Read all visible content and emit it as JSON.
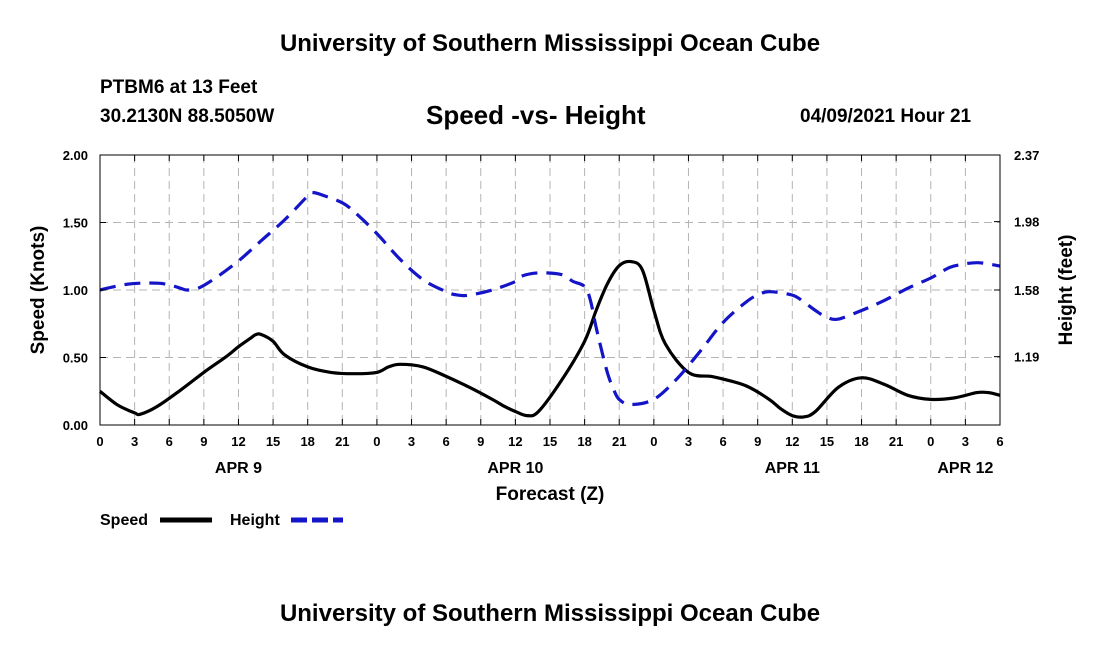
{
  "header": {
    "title_top": "University of Southern Mississippi Ocean Cube",
    "station": "PTBM6 at 13 Feet",
    "coords": "30.2130N  88.5050W",
    "chart_title": "Speed -vs- Height",
    "timestamp": "04/09/2021 Hour 21",
    "title_bottom": "University of Southern Mississippi Ocean Cube"
  },
  "colors": {
    "speed": "#000000",
    "height": "#1414c8",
    "grid": "#b4b4b4"
  },
  "chart_data": {
    "type": "line",
    "title": "Speed -vs- Height",
    "xlabel": "Forecast (Z)",
    "ylabel_left": "Speed (Knots)",
    "ylabel_right": "Height (feet)",
    "x_unit": "hours from 00Z APR 9",
    "xlim": [
      0,
      78
    ],
    "ylim_left": [
      0,
      2.0
    ],
    "ylim_right": [
      0.79,
      2.37
    ],
    "x_ticks": [
      0,
      3,
      6,
      9,
      12,
      15,
      18,
      21,
      24,
      27,
      30,
      33,
      36,
      39,
      42,
      45,
      48,
      51,
      54,
      57,
      60,
      63,
      66,
      69,
      72,
      75,
      78
    ],
    "x_tick_labels": [
      "0",
      "3",
      "6",
      "9",
      "12",
      "15",
      "18",
      "21",
      "0",
      "3",
      "6",
      "9",
      "12",
      "15",
      "18",
      "21",
      "0",
      "3",
      "6",
      "9",
      "12",
      "15",
      "18",
      "21",
      "0",
      "3",
      "6"
    ],
    "y_left_ticks": [
      "0.00",
      "0.50",
      "1.00",
      "1.50",
      "2.00"
    ],
    "y_left_tick_values": [
      0,
      0.5,
      1.0,
      1.5,
      2.0
    ],
    "y_right_ticks": [
      "1.19",
      "1.58",
      "1.98",
      "2.37"
    ],
    "y_right_tick_values": [
      1.19,
      1.58,
      1.98,
      2.37
    ],
    "date_labels": [
      {
        "label": "APR 9",
        "x": 12
      },
      {
        "label": "APR 10",
        "x": 36
      },
      {
        "label": "APR 11",
        "x": 60
      },
      {
        "label": "APR 12",
        "x": 75
      }
    ],
    "grid": true,
    "series": [
      {
        "name": "Speed",
        "axis": "left",
        "style": "solid",
        "x": [
          0,
          1.5,
          3,
          3.5,
          5,
          7,
          9,
          11,
          12,
          13,
          13.5,
          14,
          15,
          16,
          18,
          20,
          22,
          24,
          25,
          26,
          28,
          30,
          32,
          34,
          35,
          36,
          37,
          38,
          40,
          42,
          43,
          44,
          45,
          46,
          47,
          48,
          49,
          51,
          53,
          54,
          56,
          58,
          59,
          60,
          61,
          62,
          64,
          66,
          68,
          70,
          72,
          74,
          76,
          77,
          78
        ],
        "values": [
          0.25,
          0.15,
          0.09,
          0.08,
          0.14,
          0.26,
          0.39,
          0.51,
          0.58,
          0.64,
          0.67,
          0.67,
          0.62,
          0.52,
          0.43,
          0.39,
          0.38,
          0.39,
          0.43,
          0.45,
          0.43,
          0.36,
          0.28,
          0.19,
          0.14,
          0.1,
          0.07,
          0.1,
          0.33,
          0.62,
          0.85,
          1.05,
          1.18,
          1.21,
          1.15,
          0.85,
          0.6,
          0.39,
          0.36,
          0.34,
          0.29,
          0.19,
          0.12,
          0.07,
          0.06,
          0.1,
          0.28,
          0.35,
          0.3,
          0.22,
          0.19,
          0.2,
          0.24,
          0.24,
          0.22
        ]
      },
      {
        "name": "Height",
        "axis": "right",
        "style": "dashed",
        "x": [
          0,
          2,
          3.5,
          5,
          6,
          7,
          7.5,
          8.5,
          10,
          12,
          14,
          16,
          18,
          18.5,
          19.5,
          21,
          22,
          24,
          26,
          28,
          30,
          31,
          32,
          34,
          36,
          36.5,
          38,
          40,
          41,
          42,
          42.5,
          43,
          43.5,
          44,
          44.5,
          45,
          46,
          48,
          50,
          52,
          54,
          56,
          57,
          58,
          60,
          61,
          62,
          63,
          64,
          66,
          68,
          70,
          72,
          73,
          74,
          76,
          78
        ],
        "values": [
          1.58,
          1.61,
          1.62,
          1.62,
          1.61,
          1.59,
          1.58,
          1.59,
          1.65,
          1.75,
          1.87,
          1.99,
          2.13,
          2.15,
          2.13,
          2.09,
          2.04,
          1.91,
          1.76,
          1.64,
          1.57,
          1.55,
          1.55,
          1.58,
          1.63,
          1.66,
          1.68,
          1.67,
          1.63,
          1.6,
          1.52,
          1.36,
          1.22,
          1.09,
          1.0,
          0.94,
          0.91,
          0.94,
          1.06,
          1.22,
          1.39,
          1.51,
          1.55,
          1.57,
          1.55,
          1.51,
          1.46,
          1.42,
          1.41,
          1.46,
          1.52,
          1.59,
          1.65,
          1.69,
          1.72,
          1.74,
          1.72
        ]
      }
    ]
  },
  "legend": {
    "speed_label": "Speed",
    "height_label": "Height"
  }
}
